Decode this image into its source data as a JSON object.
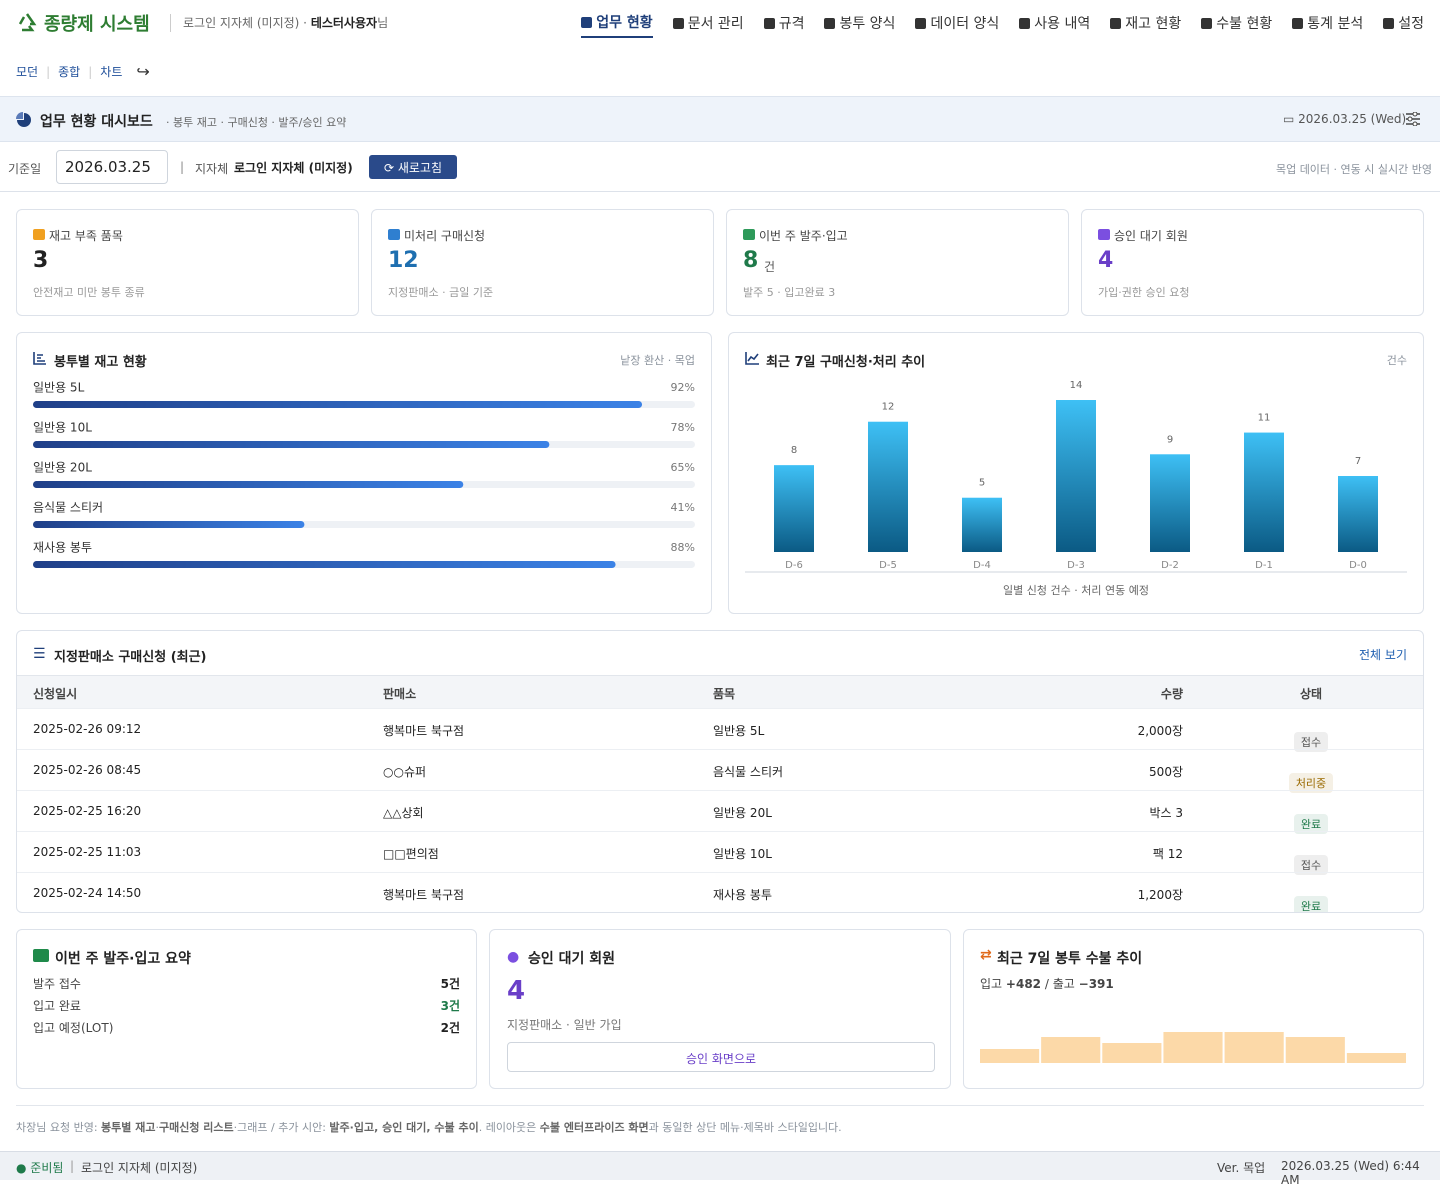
{
  "header": {
    "logo": "종량제 시스템",
    "user_prefix": "로그인 지자체 (미지정) ·",
    "user": "테스터사용자",
    "user_suffix": "님",
    "nav": [
      "업무 현황",
      "문서 관리",
      "규격",
      "봉투 양식",
      "데이터 양식",
      "사용 내역",
      "재고 현황",
      "수불 현황",
      "통계 분석",
      "설정"
    ],
    "nav_active": 0,
    "subnav": [
      "모던",
      "종합",
      "차트"
    ]
  },
  "titlebar": {
    "title": "업무 현황 대시보드",
    "subtitle": "· 봉투 재고 · 구매신청 · 발주/승인 요약",
    "date": "2026.03.25 (Wed)"
  },
  "filter": {
    "date_label": "기준일",
    "date_value": "2026.03.25",
    "region_label": "지자체",
    "region": "로그인 지자체 (미지정)",
    "refresh": "새로고침",
    "note": "목업 데이터 · 연동 시 실시간 반영"
  },
  "kpis": [
    {
      "label": "재고 부족 품목",
      "value": 3,
      "caption": "안전재고 미만 봉투 종류",
      "color": "#222222",
      "icon_color": "#f0a020"
    },
    {
      "label": "미처리 구매신청",
      "value": 12,
      "caption": "지정판매소 · 금일 기준",
      "color": "#1e6fb0",
      "icon_color": "#2f7fd0"
    },
    {
      "label": "이번 주 발주·입고",
      "value": 8,
      "unit": "건",
      "caption": "발주 5 · 입고완료 3",
      "color": "#1f7a4a",
      "icon_color": "#2e9a5a"
    },
    {
      "label": "승인 대기 회원",
      "value": 4,
      "caption": "가입·권한 승인 요청",
      "color": "#6a3fc8",
      "icon_color": "#7b4fe0"
    }
  ],
  "stock_chart": {
    "type": "progress",
    "title": "봉투별 재고 현황",
    "note": "낱장 환산 · 목업",
    "categories": [
      "일반용 5L",
      "일반용 10L",
      "일반용 20L",
      "음식물 스티커",
      "재사용 봉투"
    ],
    "values": [
      92,
      78,
      65,
      41,
      88
    ],
    "value_labels": [
      "92%",
      "78%",
      "65%",
      "41%",
      "88%"
    ],
    "xlim": [
      0,
      100
    ],
    "color": "#2f5fb8"
  },
  "trend_chart": {
    "type": "bar",
    "title": "최근 7일 구매신청·처리 추이",
    "note": "건수",
    "categories": [
      "D-6",
      "D-5",
      "D-4",
      "D-3",
      "D-2",
      "D-1",
      "D-0"
    ],
    "values": [
      8,
      12,
      5,
      14,
      9,
      11,
      7
    ],
    "caption": "일별 신청 건수 · 처리 연동 예정",
    "color": "#2aa4e0"
  },
  "table": {
    "title": "지정판매소 구매신청 (최근)",
    "link": "전체 보기",
    "columns": [
      "신청일시",
      "판매소",
      "품목",
      "수량",
      "상태"
    ],
    "rows": [
      [
        "2025-02-26 09:12",
        "행복마트 북구점",
        "일반용 5L",
        "2,000장",
        "접수"
      ],
      [
        "2025-02-26 08:45",
        "○○슈퍼",
        "음식물 스티커",
        "500장",
        "처리중"
      ],
      [
        "2025-02-25 16:20",
        "△△상회",
        "일반용 20L",
        "박스 3",
        "완료"
      ],
      [
        "2025-02-25 11:03",
        "□□편의점",
        "일반용 10L",
        "팩 12",
        "접수"
      ],
      [
        "2025-02-24 14:50",
        "행복마트 북구점",
        "재사용 봉투",
        "1,200장",
        "완료"
      ]
    ],
    "status_colors": [
      "#555555",
      "#9a6a00",
      "#1f7a4a",
      "#555555",
      "#1f7a4a"
    ]
  },
  "order_summary": {
    "title": "이번 주 발주·입고 요약",
    "rows": [
      {
        "label": "발주 접수",
        "value": "5건",
        "color": "#222222"
      },
      {
        "label": "입고 완료",
        "value": "3건",
        "color": "#1f7a4a"
      },
      {
        "label": "입고 예정(LOT)",
        "value": "2건",
        "color": "#222222"
      }
    ]
  },
  "approval": {
    "title": "승인 대기 회원",
    "value": 4,
    "caption": "지정판매소 · 일반 가입",
    "button": "승인 화면으로"
  },
  "flow_chart": {
    "type": "bar",
    "title": "최근 7일 봉투 수불 추이",
    "in_label": "입고",
    "in_value": "+482",
    "separator": "/",
    "out_label": "출고",
    "out_value": "−391",
    "values": [
      14,
      26,
      20,
      31,
      31,
      26,
      10
    ],
    "color": "#fcd9a8"
  },
  "footer_note": {
    "segments": [
      {
        "text": "차장님 요청 반영: "
      },
      {
        "text": "봉투별 재고",
        "bold": true
      },
      {
        "text": "·"
      },
      {
        "text": "구매신청 리스트",
        "bold": true
      },
      {
        "text": "·그래프 / 추가 시안: "
      },
      {
        "text": "발주·입고, 승인 대기, 수불 추이",
        "bold": true
      },
      {
        "text": ". 레이아웃은 "
      },
      {
        "text": "수불 엔터프라이즈 화면",
        "bold": true
      },
      {
        "text": "과 동일한 상단 메뉴·제목바 스타일입니다."
      }
    ]
  },
  "statusbar": {
    "status": "준비됨",
    "region": "로그인 지자체 (미지정)",
    "version": "Ver. 목업",
    "datetime": "2026.03.25 (Wed) 6:44 AM"
  }
}
